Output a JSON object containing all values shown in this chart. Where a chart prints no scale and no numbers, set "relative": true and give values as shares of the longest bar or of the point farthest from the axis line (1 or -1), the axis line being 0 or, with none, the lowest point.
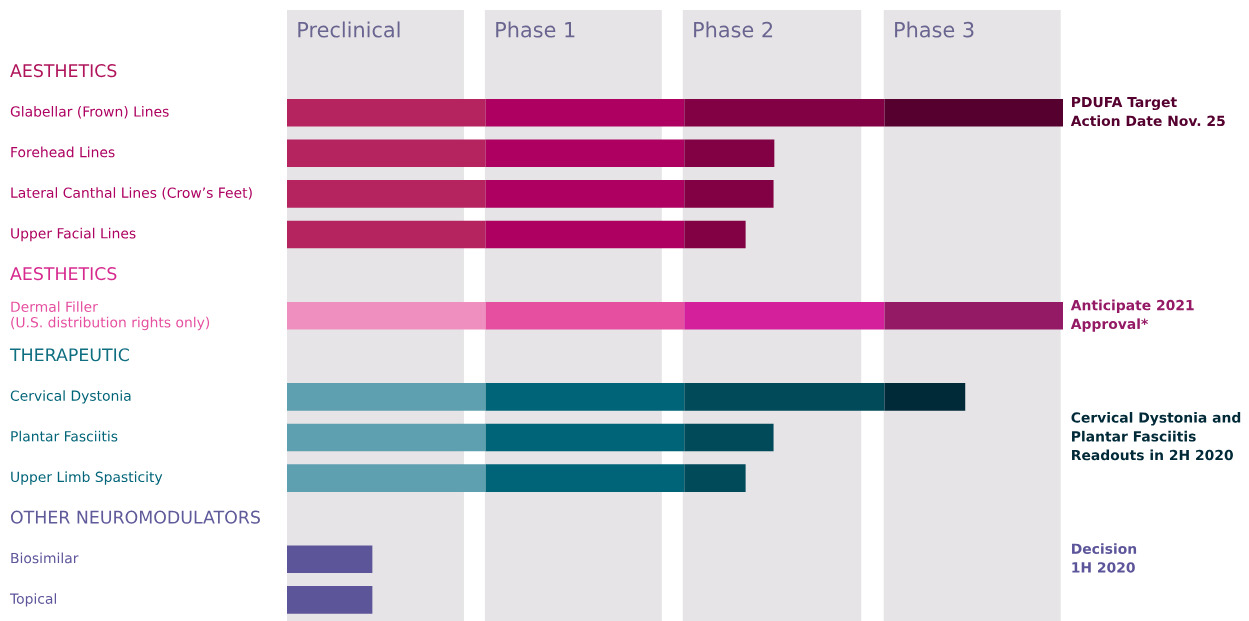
{
  "chart_data": {
    "type": "bar",
    "orientation": "horizontal",
    "stacked": true,
    "relative": true,
    "legend": false,
    "tick_labels": "y",
    "categories": [
      "AESTHETICS",
      "Glabellar (Frown) Lines",
      "Forehead Lines",
      "Lateral Canthal Lines (Crow’s Feet)",
      "Upper Facial Lines",
      "AESTHETICS",
      "Dermal Filler\n(U.S. distribution rights only)",
      "THERAPEUTIC",
      "Cervical Dystonia",
      "Plantar Fasciitis",
      "Upper Limb Spasticity",
      "OTHER NEUROMODULATORS",
      "Biosimilar",
      "Topical"
    ],
    "series": [
      {
        "values": [
          null,
          0.256,
          0.256,
          0.256,
          0.256,
          null,
          0.256,
          null,
          0.256,
          0.256,
          0.256,
          null,
          0.11,
          0.11
        ],
        "colors": [
          "#b0155c",
          "#b5245f",
          "#b5245f",
          "#b5245f",
          "#b5245f",
          "#d62a8e",
          "#ef8fc0",
          "#0f6f80",
          "#5fa0b0",
          "#5fa0b0",
          "#5fa0b0",
          "#5f5a9a",
          "#5c559a",
          "#5c559a"
        ]
      },
      {
        "values": [
          null,
          0.256,
          0.256,
          0.256,
          0.256,
          null,
          0.256,
          null,
          0.256,
          0.256,
          0.256,
          null,
          null,
          null
        ],
        "colors": [
          "#b0155c",
          "#ad0060",
          "#ad0060",
          "#ad0060",
          "#ad0060",
          "#d62a8e",
          "#e64fa0",
          "#0f6f80",
          "#006478",
          "#006478",
          "#006478",
          "#5f5a9a",
          "#5c559a",
          "#5c559a"
        ]
      },
      {
        "values": [
          null,
          0.258,
          0.116,
          0.115,
          0.079,
          null,
          0.258,
          null,
          0.258,
          0.115,
          0.079,
          null,
          null,
          null
        ],
        "colors": [
          "#b0155c",
          "#820044",
          "#820044",
          "#820044",
          "#820044",
          "#d62a8e",
          "#d4209a",
          "#0f6f80",
          "#004a5a",
          "#004a5a",
          "#004a5a",
          "#5f5a9a",
          "#5c559a",
          "#5c559a"
        ]
      },
      {
        "values": [
          null,
          0.23,
          null,
          null,
          null,
          null,
          0.23,
          null,
          0.104,
          null,
          null,
          null,
          null,
          null
        ],
        "colors": [
          "#b0155c",
          "#560030",
          "#560030",
          "#560030",
          "#560030",
          "#d62a8e",
          "#951a66",
          "#0f6f80",
          "#002a38",
          "#002a38",
          "#002a38",
          "#5f5a9a",
          "#5c559a",
          "#5c559a"
        ]
      }
    ],
    "bands": [
      {
        "axis": "x",
        "from": 0,
        "to": 0.228,
        "label": "Preclinical",
        "color": "#e6e4e6"
      },
      {
        "axis": "x",
        "from": 0.255,
        "to": 0.483,
        "label": "Phase 1",
        "color": "#e6e4e6"
      },
      {
        "axis": "x",
        "from": 0.51,
        "to": 0.74,
        "label": "Phase 2",
        "color": "#e6e4e6"
      },
      {
        "axis": "x",
        "from": 0.769,
        "to": 0.997,
        "label": "Phase 3",
        "color": "#e6e4e6"
      }
    ],
    "annotations": [
      "PDUFA Target\nAction Date Nov. 25",
      "Anticipate 2021\nApproval*",
      "Cervical Dystonia and\nPlantar Fasciitis\nReadouts in 2H 2020",
      "Decision\n1H 2020"
    ]
  }
}
